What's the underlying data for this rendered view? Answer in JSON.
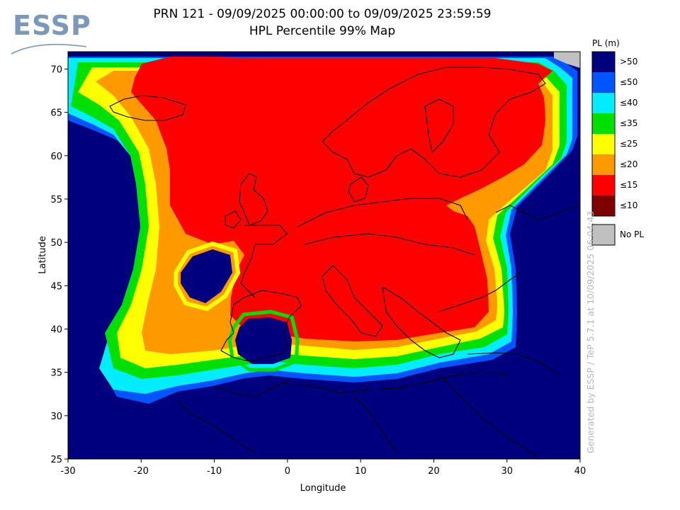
{
  "logo": {
    "text": "ESSP"
  },
  "chart_data": {
    "type": "heatmap",
    "title": "PRN 121 - 09/09/2025 00:00:00 to 09/09/2025 23:59:59",
    "subtitle": "HPL Percentile 99% Map",
    "xlabel": "Longitude",
    "ylabel": "Latitude",
    "xlim": [
      -30,
      40
    ],
    "ylim": [
      25,
      72
    ],
    "xticks": [
      -30,
      -20,
      -10,
      0,
      10,
      20,
      30,
      40
    ],
    "yticks": [
      25,
      30,
      35,
      40,
      45,
      50,
      55,
      60,
      65,
      70
    ],
    "legend": {
      "title": "PL (m)",
      "placement": "right",
      "items": [
        {
          "label": ">50",
          "color": "#00007f"
        },
        {
          "label": "≤50",
          "color": "#0055ff"
        },
        {
          "label": "≤40",
          "color": "#00eeff"
        },
        {
          "label": "≤35",
          "color": "#00e000"
        },
        {
          "label": "≤25",
          "color": "#ffff00"
        },
        {
          "label": "≤20",
          "color": "#ff9900"
        },
        {
          "label": "≤15",
          "color": "#ff0000"
        },
        {
          "label": "≤10",
          "color": "#7f0000"
        }
      ],
      "no_data": {
        "label": "No PL",
        "color": "#c0c0c0"
      }
    },
    "regions": [
      {
        "class": ">50",
        "desc": "outer ocean / Africa / Atlantic"
      },
      {
        "class": "≤50",
        "color": "#0055ff"
      },
      {
        "class": "≤40",
        "color": "#00eeff"
      },
      {
        "class": "≤35",
        "color": "#00e000"
      },
      {
        "class": "≤25",
        "color": "#ffff00"
      },
      {
        "class": "≤20",
        "color": "#ff9900"
      },
      {
        "class": "≤15",
        "color": "#ff0000"
      },
      {
        "class": ">50",
        "desc": "hole west of France"
      },
      {
        "class": ">50",
        "desc": "hole over southern Iberia"
      }
    ],
    "grid": false
  },
  "watermark": "Generated by ESSP / TeP 5.7.1 at 10/09/2025 06:04:43"
}
